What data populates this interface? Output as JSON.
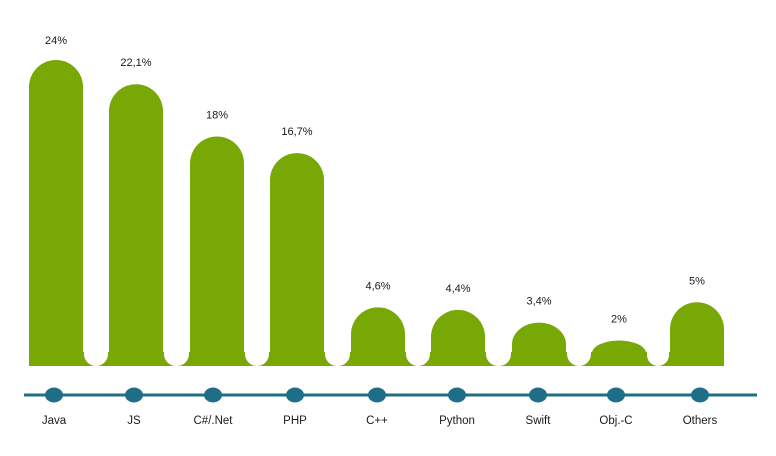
{
  "chart_data": {
    "type": "bar",
    "title": "",
    "xlabel": "",
    "ylabel": "",
    "categories": [
      "Java",
      "JS",
      "C#/.Net",
      "PHP",
      "C++",
      "Python",
      "Swift",
      "Obj.-C",
      "Others"
    ],
    "values": [
      24,
      22.1,
      18,
      16.7,
      4.6,
      4.4,
      3.4,
      2,
      5
    ],
    "value_labels": [
      "24%",
      "22,1%",
      "18%",
      "16,7%",
      "4,6%",
      "4,4%",
      "3,4%",
      "2%",
      "5%"
    ],
    "ylim": [
      0,
      24
    ],
    "grid": false,
    "legend": "none"
  },
  "colors": {
    "bar": "#77a805",
    "axis": "#1f6e87",
    "marker": "#1f6e87",
    "text": "#1a1a1a"
  }
}
